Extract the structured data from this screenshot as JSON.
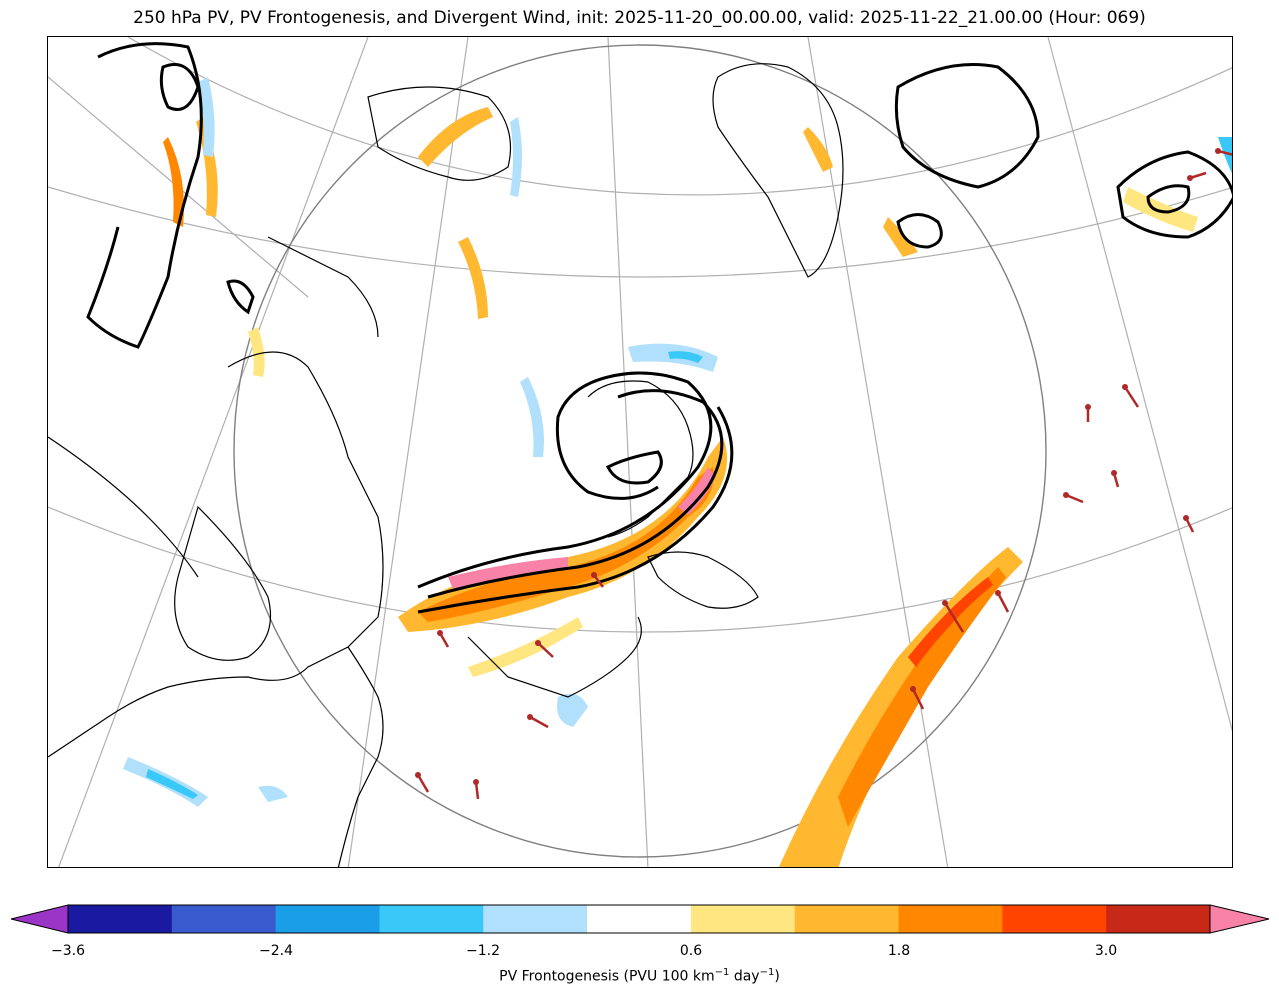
{
  "title": "250 hPa PV, PV Frontogenesis, and Divergent Wind, init: 2025-11-20_00.00.00, valid: 2025-11-22_21.00.00 (Hour: 069)",
  "colorbar": {
    "label_main": "PV Frontogenesis (PVU 100 km",
    "label_exp1": "−1",
    "label_mid": " day",
    "label_exp2": "−1",
    "label_end": ")",
    "ticks": [
      "−3.6",
      "−2.4",
      "−1.2",
      "0.6",
      "1.8",
      "3.0"
    ],
    "colors": [
      "#9a35c8",
      "#1a1aa0",
      "#3a5ad0",
      "#1a9ee8",
      "#3ac8f8",
      "#b0e0fc",
      "#ffffff",
      "#ffe680",
      "#ffb830",
      "#ff8800",
      "#ff4400",
      "#c82818",
      "#f882a8"
    ]
  },
  "map": {
    "region": "Eastern Canada / North Atlantic",
    "layers": [
      "PV contours",
      "PV frontogenesis shading",
      "divergent wind vectors",
      "coastlines",
      "lat-lon grid"
    ],
    "colors": {
      "pv_contour": "#000000",
      "wind_vector": "#b02828",
      "grid": "#b0b0b0",
      "coast": "#000000"
    }
  }
}
